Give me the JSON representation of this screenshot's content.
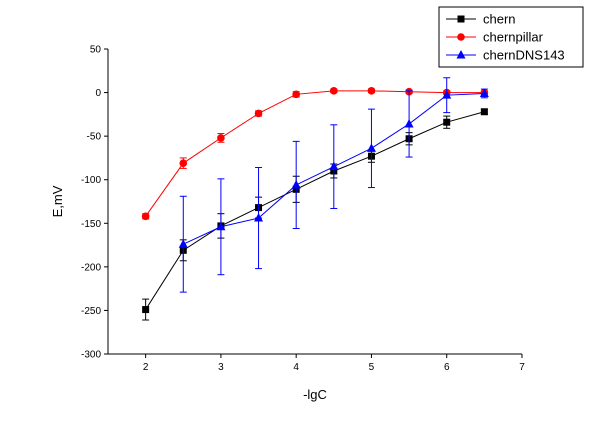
{
  "chart_data": {
    "type": "line",
    "xlabel": "-lgC",
    "ylabel": "E,mV",
    "xlim": [
      1.5,
      7
    ],
    "ylim": [
      -300,
      50
    ],
    "xticks": [
      2,
      3,
      4,
      5,
      6,
      7
    ],
    "yticks": [
      50,
      0,
      -50,
      -100,
      -150,
      -200,
      -250,
      -300
    ],
    "xtick_labels": [
      "2",
      "3",
      "4",
      "5",
      "6",
      "7"
    ],
    "ytick_labels": [
      "50",
      "0",
      "-50",
      "-100",
      "-150",
      "-200",
      "-250",
      "-300"
    ],
    "grid": false,
    "legend": {
      "position": "top-right"
    },
    "series": [
      {
        "name": "chern",
        "color": "#000000",
        "marker": "square",
        "x": [
          2,
          2.5,
          3,
          3.5,
          4,
          4.5,
          5,
          5.5,
          6,
          6.5
        ],
        "y": [
          -249,
          -181,
          -153,
          -132,
          -111,
          -90,
          -73,
          -53,
          -34,
          -22
        ],
        "err": [
          12,
          12,
          14,
          12,
          15,
          8,
          7,
          7,
          7,
          3
        ]
      },
      {
        "name": "chernpillar",
        "color": "#ff0000",
        "marker": "circle",
        "x": [
          2,
          2.5,
          3,
          3.5,
          4,
          4.5,
          5,
          5.5,
          6,
          6.5
        ],
        "y": [
          -142,
          -81,
          -52,
          -24,
          -2,
          2,
          2,
          1,
          0,
          0
        ],
        "err": [
          3,
          6,
          5,
          3,
          3,
          2,
          2,
          2,
          2,
          2
        ]
      },
      {
        "name": "chernDNS143",
        "color": "#0000ff",
        "marker": "triangle",
        "x": [
          2.5,
          3,
          3.5,
          4,
          4.5,
          5,
          5.5,
          6,
          6.5
        ],
        "y": [
          -174,
          -154,
          -144,
          -106,
          -85,
          -64,
          -36,
          -3,
          -1
        ],
        "err": [
          55,
          55,
          58,
          50,
          48,
          45,
          38,
          20,
          5
        ]
      }
    ]
  }
}
